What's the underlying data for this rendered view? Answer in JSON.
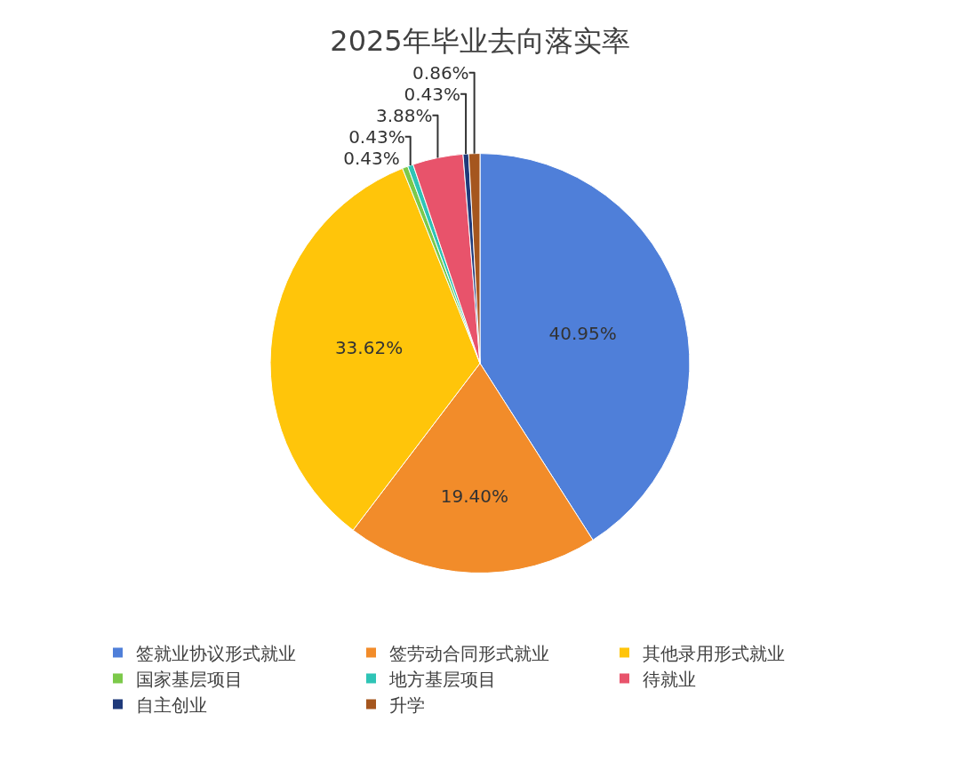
{
  "chart_data": {
    "type": "pie",
    "title": "2025年毕业去向落实率",
    "categories": [
      "签就业协议形式就业",
      "签劳动合同形式就业",
      "其他录用形式就业",
      "国家基层项目",
      "地方基层项目",
      "待就业",
      "自主创业",
      "升学"
    ],
    "values": [
      40.95,
      19.4,
      33.62,
      0.43,
      0.43,
      3.88,
      0.43,
      0.86
    ],
    "value_labels": [
      "40.95%",
      "19.40%",
      "33.62%",
      "0.43%",
      "0.43%",
      "3.88%",
      "0.43%",
      "0.86%"
    ],
    "colors": [
      "#4f7fd9",
      "#f28c2a",
      "#ffc50a",
      "#7cc94a",
      "#2ec4b6",
      "#e8536b",
      "#1f3a7a",
      "#a5561e"
    ],
    "legend": "bottom"
  }
}
